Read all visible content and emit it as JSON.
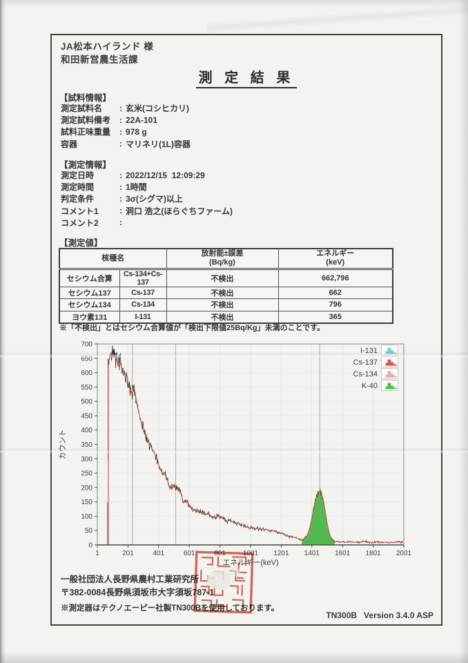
{
  "colon": ":",
  "page": {
    "recipient_line1": "JA松本ハイランド 様",
    "recipient_line2": "和田新営農生活課",
    "title": "測 定 結 果",
    "version_line": "TN300B   Version 3.4.0 ASP"
  },
  "sample_info": {
    "heading": "【試料情報】",
    "rows": [
      {
        "label": "測定試料名",
        "value": "玄米(コシヒカリ)"
      },
      {
        "label": "測定試料備考",
        "value": "22A-101"
      },
      {
        "label": "試料正味重量",
        "value": "978 g"
      },
      {
        "label": "容器",
        "value": "マリネリ(1L)容器"
      }
    ]
  },
  "measure_info": {
    "heading": "【測定情報】",
    "rows": [
      {
        "label": "測定日時",
        "value": "2022/12/15  12:09:29"
      },
      {
        "label": "測定時間",
        "value": "1時間"
      },
      {
        "label": "判定条件",
        "value": "3σ(シグマ)以上"
      },
      {
        "label": "コメント1",
        "value": "洞口 浩之(ほらぐちファーム)"
      },
      {
        "label": "コメント2",
        "value": ""
      }
    ]
  },
  "results": {
    "heading": "【測定値】",
    "table": {
      "headers": {
        "nuclide": "核種名",
        "activity_line1": "放射能±誤差",
        "activity_line2": "(Bq/kg)",
        "energy_line1": "エネルギー",
        "energy_line2": "(keV)"
      },
      "rows": [
        {
          "name": "セシウム合算",
          "code": "Cs-134+Cs-137",
          "activity": "不検出",
          "energy": "662,796"
        },
        {
          "name": "セシウム137",
          "code": "Cs-137",
          "activity": "不検出",
          "energy": "662"
        },
        {
          "name": "セシウム134",
          "code": "Cs-134",
          "activity": "不検出",
          "energy": "796"
        },
        {
          "name": "ヨウ素131",
          "code": "I-131",
          "activity": "不検出",
          "energy": "365"
        }
      ]
    },
    "note": "※「不検出」とはセシウム合算値が「検出下限値25Bq/Kg」未満のことです。"
  },
  "chart_data": {
    "type": "line",
    "title": "",
    "xlabel": "エネルギー(keV)",
    "ylabel": "カウント",
    "xlim": [
      1,
      2001
    ],
    "ylim": [
      0,
      700
    ],
    "x_ticks": [
      1,
      201,
      401,
      601,
      801,
      1001,
      1201,
      1401,
      1601,
      1801,
      2001
    ],
    "y_ticks": [
      0,
      50,
      100,
      150,
      200,
      250,
      300,
      350,
      400,
      450,
      500,
      550,
      600,
      650,
      700
    ],
    "grid": true,
    "legend_position": "top-right-inside",
    "legend": [
      {
        "label": "I-131",
        "color": "#6fd0db"
      },
      {
        "label": "Cs-137",
        "color": "#dd544e"
      },
      {
        "label": "Cs-134",
        "color": "#f0a8a4"
      },
      {
        "label": "K-40",
        "color": "#55b951"
      }
    ],
    "marker_lines_x": [
      230,
      512,
      1452
    ],
    "k40_fill_region": [
      1335,
      1552
    ],
    "k40_fill_color": "#55b951",
    "raw_trace_color": "#1f1f1d",
    "smooth_trace_color": "#d65752",
    "noise_seed": 20221215,
    "left_spikes": [
      [
        69,
        0,
        148
      ],
      [
        71.5,
        295,
        648
      ]
    ],
    "spectrum_anchors": [
      [
        72,
        0
      ],
      [
        73,
        628
      ],
      [
        78,
        646
      ],
      [
        85,
        655
      ],
      [
        95,
        660
      ],
      [
        105,
        662
      ],
      [
        115,
        656
      ],
      [
        124,
        648
      ],
      [
        132,
        640
      ],
      [
        140,
        622
      ],
      [
        147,
        636
      ],
      [
        155,
        628
      ],
      [
        163,
        612
      ],
      [
        172,
        604
      ],
      [
        180,
        598
      ],
      [
        188,
        592
      ],
      [
        196,
        586
      ],
      [
        203,
        562
      ],
      [
        210,
        548
      ],
      [
        218,
        537
      ],
      [
        226,
        530
      ],
      [
        234,
        540
      ],
      [
        242,
        547
      ],
      [
        249,
        525
      ],
      [
        256,
        502
      ],
      [
        264,
        478
      ],
      [
        272,
        458
      ],
      [
        280,
        442
      ],
      [
        290,
        426
      ],
      [
        300,
        411
      ],
      [
        312,
        394
      ],
      [
        324,
        376
      ],
      [
        336,
        358
      ],
      [
        348,
        345
      ],
      [
        360,
        333
      ],
      [
        372,
        320
      ],
      [
        384,
        306
      ],
      [
        396,
        292
      ],
      [
        406,
        272
      ],
      [
        416,
        258
      ],
      [
        428,
        250
      ],
      [
        440,
        251
      ],
      [
        450,
        240
      ],
      [
        460,
        222
      ],
      [
        470,
        200
      ],
      [
        478,
        196
      ],
      [
        486,
        206
      ],
      [
        494,
        212
      ],
      [
        502,
        204
      ],
      [
        510,
        200
      ],
      [
        520,
        206
      ],
      [
        530,
        194
      ],
      [
        540,
        186
      ],
      [
        550,
        176
      ],
      [
        558,
        156
      ],
      [
        566,
        149
      ],
      [
        576,
        157
      ],
      [
        588,
        151
      ],
      [
        600,
        139
      ],
      [
        614,
        129
      ],
      [
        628,
        122
      ],
      [
        642,
        118
      ],
      [
        656,
        119
      ],
      [
        670,
        115
      ],
      [
        684,
        112
      ],
      [
        698,
        109
      ],
      [
        712,
        105
      ],
      [
        726,
        108
      ],
      [
        740,
        102
      ],
      [
        754,
        98
      ],
      [
        768,
        95
      ],
      [
        782,
        99
      ],
      [
        796,
        100
      ],
      [
        810,
        96
      ],
      [
        824,
        91
      ],
      [
        838,
        87
      ],
      [
        852,
        83
      ],
      [
        866,
        86
      ],
      [
        880,
        81
      ],
      [
        894,
        77
      ],
      [
        908,
        73
      ],
      [
        922,
        76
      ],
      [
        936,
        72
      ],
      [
        950,
        68
      ],
      [
        964,
        65
      ],
      [
        978,
        62
      ],
      [
        992,
        60
      ],
      [
        1006,
        62
      ],
      [
        1020,
        59
      ],
      [
        1034,
        56
      ],
      [
        1048,
        58
      ],
      [
        1062,
        54
      ],
      [
        1076,
        56
      ],
      [
        1090,
        52
      ],
      [
        1104,
        54
      ],
      [
        1118,
        50
      ],
      [
        1132,
        48
      ],
      [
        1146,
        50
      ],
      [
        1160,
        46
      ],
      [
        1174,
        44
      ],
      [
        1188,
        42
      ],
      [
        1202,
        40
      ],
      [
        1216,
        38
      ],
      [
        1230,
        35
      ],
      [
        1244,
        32
      ],
      [
        1258,
        30
      ],
      [
        1272,
        28
      ],
      [
        1286,
        26
      ],
      [
        1300,
        24
      ],
      [
        1314,
        22
      ],
      [
        1328,
        19
      ],
      [
        1340,
        18
      ],
      [
        1352,
        22
      ],
      [
        1364,
        28
      ],
      [
        1376,
        40
      ],
      [
        1388,
        60
      ],
      [
        1400,
        92
      ],
      [
        1412,
        128
      ],
      [
        1424,
        158
      ],
      [
        1436,
        176
      ],
      [
        1446,
        184
      ],
      [
        1454,
        187
      ],
      [
        1462,
        180
      ],
      [
        1472,
        164
      ],
      [
        1482,
        138
      ],
      [
        1492,
        104
      ],
      [
        1502,
        72
      ],
      [
        1512,
        46
      ],
      [
        1522,
        30
      ],
      [
        1532,
        20
      ],
      [
        1542,
        15
      ],
      [
        1552,
        12
      ],
      [
        1565,
        11
      ],
      [
        1580,
        10
      ],
      [
        1600,
        11
      ],
      [
        1620,
        9
      ],
      [
        1640,
        12
      ],
      [
        1660,
        10
      ],
      [
        1680,
        9
      ],
      [
        1700,
        11
      ],
      [
        1720,
        9
      ],
      [
        1740,
        13
      ],
      [
        1760,
        11
      ],
      [
        1780,
        9
      ],
      [
        1800,
        8
      ],
      [
        1820,
        11
      ],
      [
        1840,
        9
      ],
      [
        1860,
        8
      ],
      [
        1880,
        10
      ],
      [
        1900,
        7
      ],
      [
        1920,
        9
      ],
      [
        1940,
        8
      ],
      [
        1960,
        12
      ],
      [
        1980,
        9
      ],
      [
        1998,
        8
      ]
    ]
  },
  "footer": {
    "org": "一般社団法人長野県農村工業研究所",
    "address": "〒382-0084長野県須坂市大字須坂787-1",
    "note": "※測定器はテクノエーピー社製TN300Bを使用しております。"
  }
}
